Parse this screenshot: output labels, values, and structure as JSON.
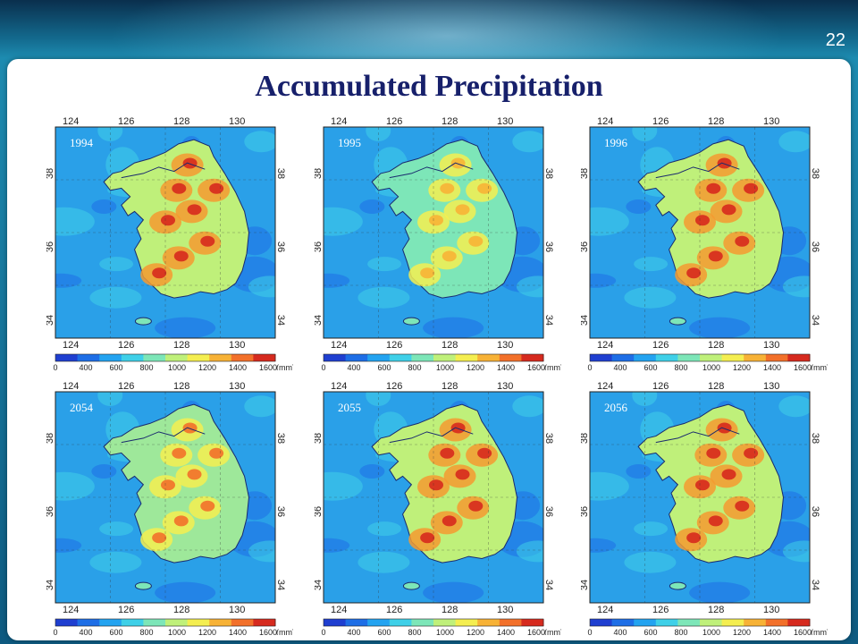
{
  "slide": {
    "number": "22",
    "title": "Accumulated Precipitation"
  },
  "colorbar": {
    "ticks": [
      "0",
      "400",
      "600",
      "800",
      "1000",
      "1200",
      "1400",
      "1600"
    ],
    "unit": "(mm)",
    "colors": [
      "#1f3fd0",
      "#1e6ee6",
      "#23a3f0",
      "#3fd0e8",
      "#7de6b8",
      "#bff07a",
      "#f4ee50",
      "#f7b236",
      "#f2702a",
      "#d62a1e"
    ]
  },
  "axes": {
    "lon_ticks": [
      "124",
      "126",
      "128",
      "130"
    ],
    "lat_ticks": [
      "38",
      "36",
      "34"
    ]
  },
  "maps": [
    {
      "year": "1994",
      "intensity": "high"
    },
    {
      "year": "1995",
      "intensity": "low"
    },
    {
      "year": "1996",
      "intensity": "high"
    },
    {
      "year": "2054",
      "intensity": "medium"
    },
    {
      "year": "2055",
      "intensity": "high"
    },
    {
      "year": "2056",
      "intensity": "high"
    }
  ]
}
